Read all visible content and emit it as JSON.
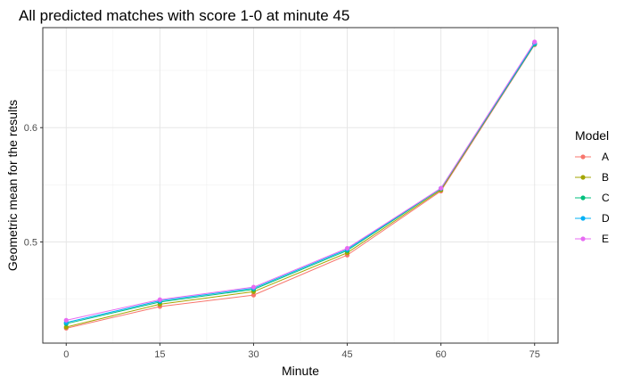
{
  "chart_data": {
    "type": "line",
    "title": "All predicted matches with score 1-0 at minute 45",
    "xlabel": "Minute",
    "ylabel": "Geometric mean for the results",
    "x": [
      0,
      15,
      30,
      45,
      60,
      75
    ],
    "xlim": [
      -3.75,
      78.75
    ],
    "ylim": [
      0.4115,
      0.6875
    ],
    "x_ticks": [
      0,
      15,
      30,
      45,
      60,
      75
    ],
    "y_ticks": [
      0.5,
      0.6
    ],
    "grid": true,
    "legend_title": "Model",
    "legend_position": "right",
    "series": [
      {
        "name": "A",
        "color": "#F8766D",
        "values": [
          0.4245,
          0.4435,
          0.4535,
          0.4885,
          0.5445,
          0.6725
        ]
      },
      {
        "name": "B",
        "color": "#A3A500",
        "values": [
          0.4255,
          0.4455,
          0.4565,
          0.4905,
          0.5455,
          0.6735
        ]
      },
      {
        "name": "C",
        "color": "#00BF7D",
        "values": [
          0.4285,
          0.4475,
          0.4585,
          0.4925,
          0.5465,
          0.673
        ]
      },
      {
        "name": "D",
        "color": "#00B0F6",
        "values": [
          0.4295,
          0.4485,
          0.4595,
          0.4935,
          0.547,
          0.674
        ]
      },
      {
        "name": "E",
        "color": "#E76BF3",
        "values": [
          0.4315,
          0.4495,
          0.4605,
          0.4945,
          0.547,
          0.675
        ]
      }
    ]
  }
}
